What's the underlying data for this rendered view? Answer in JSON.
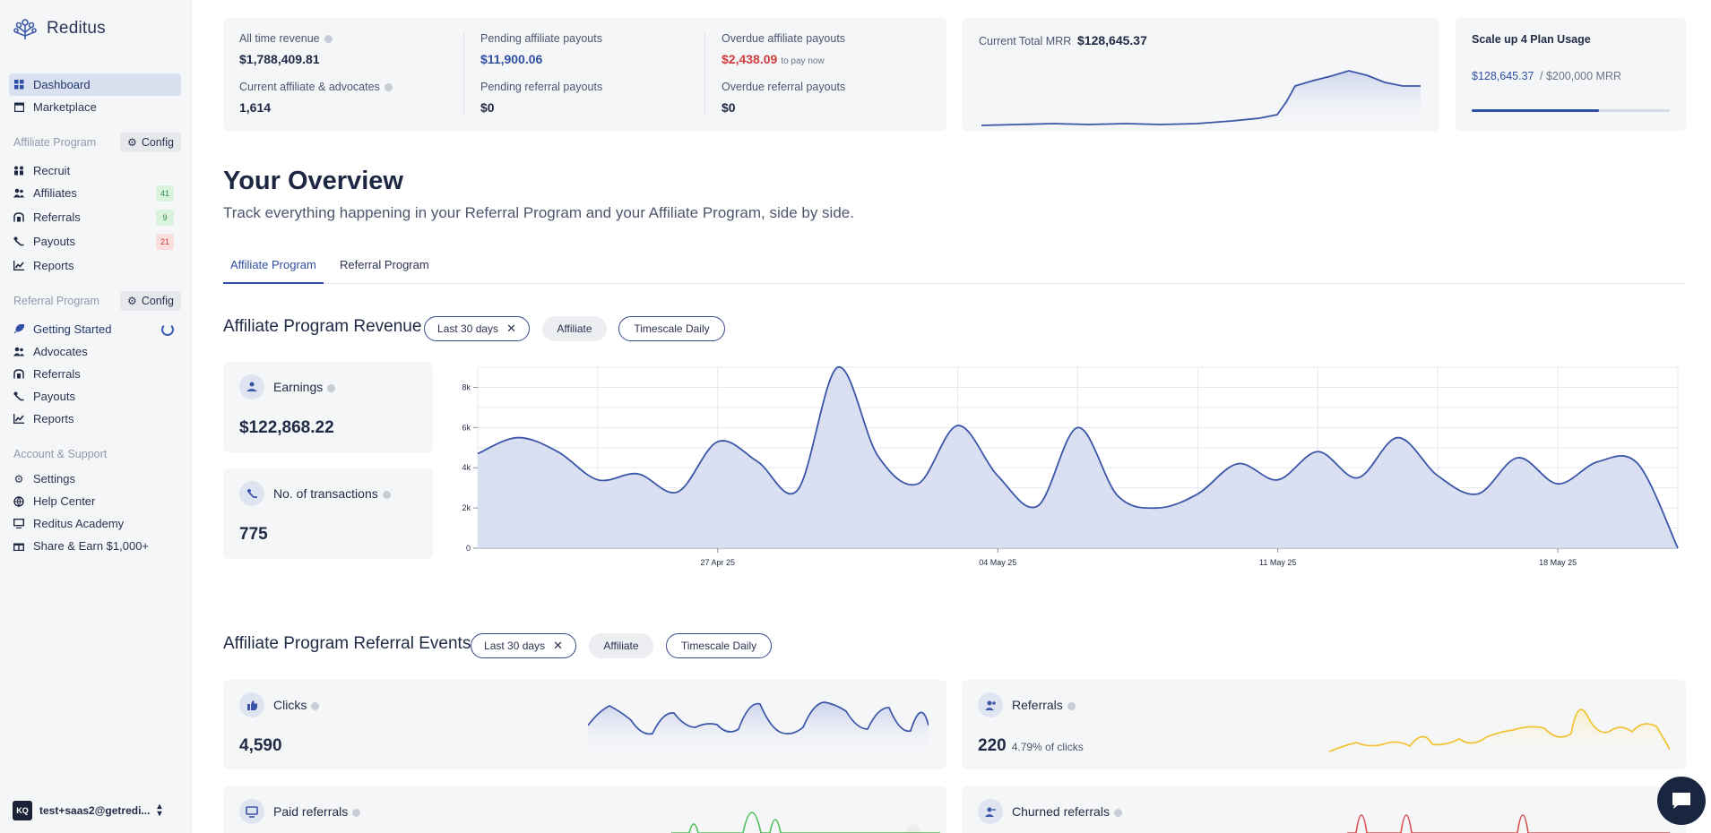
{
  "sidebar": {
    "brand": "Reditus",
    "top_items": [
      {
        "label": "Dashboard",
        "icon": "dashboard-icon"
      },
      {
        "label": "Marketplace",
        "icon": "store-icon"
      }
    ],
    "affiliate_section": {
      "title": "Affiliate Program",
      "config": "Config",
      "items": [
        {
          "label": "Recruit",
          "icon": "recruit-icon"
        },
        {
          "label": "Affiliates",
          "icon": "users-icon",
          "badge": "41"
        },
        {
          "label": "Referrals",
          "icon": "referral-icon",
          "badge": "9"
        },
        {
          "label": "Payouts",
          "icon": "payout-icon",
          "badge": "21"
        },
        {
          "label": "Reports",
          "icon": "chart-icon"
        }
      ]
    },
    "referral_section": {
      "title": "Referral Program",
      "config": "Config",
      "items": [
        {
          "label": "Getting Started",
          "icon": "rocket-icon"
        },
        {
          "label": "Advocates",
          "icon": "users-icon"
        },
        {
          "label": "Referrals",
          "icon": "referral-icon"
        },
        {
          "label": "Payouts",
          "icon": "payout-icon"
        },
        {
          "label": "Reports",
          "icon": "chart-icon"
        }
      ]
    },
    "support_section": {
      "title": "Account & Support",
      "items": [
        {
          "label": "Settings",
          "icon": "gear-icon"
        },
        {
          "label": "Help Center",
          "icon": "globe-icon"
        },
        {
          "label": "Reditus Academy",
          "icon": "academy-icon"
        },
        {
          "label": "Share & Earn $1,000+",
          "icon": "gift-icon"
        }
      ]
    },
    "account": {
      "initials": "KQ",
      "email": "test+saas2@getredi..."
    }
  },
  "stats": {
    "all_time_revenue_label": "All time revenue",
    "all_time_revenue": "$1,788,409.81",
    "affiliates_label": "Current affiliate & advocates",
    "affiliates": "1,614",
    "pending_affiliate_label": "Pending affiliate payouts",
    "pending_affiliate": "$11,900.06",
    "pending_referral_label": "Pending referral payouts",
    "pending_referral": "$0",
    "overdue_affiliate_label": "Overdue affiliate payouts",
    "overdue_affiliate": "$2,438.09",
    "overdue_affiliate_note": "to pay now",
    "overdue_referral_label": "Overdue referral payouts",
    "overdue_referral": "$0"
  },
  "mrr": {
    "label": "Current Total MRR",
    "value": "$128,645.37"
  },
  "plan": {
    "title": "Scale up 4 Plan Usage",
    "current": "$128,645.37",
    "limit": "/ $200,000 MRR",
    "progress": 0.643
  },
  "overview": {
    "title": "Your Overview",
    "subtitle": "Track everything happening in your Referral Program and your Affiliate Program, side by side.",
    "tabs": [
      "Affiliate Program",
      "Referral Program"
    ]
  },
  "revenue_section": {
    "title": "Affiliate Program Revenue",
    "filters": {
      "range": "Last 30 days",
      "type": "Affiliate",
      "timescale": "Timescale Daily"
    },
    "earnings_label": "Earnings",
    "earnings_value": "$122,868.22",
    "transactions_label": "No. of transactions",
    "transactions_value": "775"
  },
  "events_section": {
    "title": "Affiliate Program Referral Events",
    "filters": {
      "range": "Last 30 days",
      "type": "Affiliate",
      "timescale": "Timescale Daily"
    },
    "clicks_label": "Clicks",
    "clicks_value": "4,590",
    "referrals_label": "Referrals",
    "referrals_value": "220",
    "referrals_sub": "4.79% of clicks",
    "paid_label": "Paid referrals",
    "churned_label": "Churned referrals"
  },
  "chart_data": {
    "type": "area",
    "title": "",
    "xlabel": "",
    "ylabel": "",
    "ylim": [
      0,
      9000
    ],
    "yticks": [
      0,
      2000,
      4000,
      6000,
      8000
    ],
    "ytick_labels": [
      "0",
      "2k",
      "4k",
      "6k",
      "8k"
    ],
    "xtick_labels": [
      {
        "label": "27 Apr 25",
        "index": 6
      },
      {
        "label": "04 May 25",
        "index": 13
      },
      {
        "label": "11 May 25",
        "index": 20
      },
      {
        "label": "18 May 25",
        "index": 27
      }
    ],
    "x": [
      "Apr 21",
      "Apr 22",
      "Apr 23",
      "Apr 24",
      "Apr 25",
      "Apr 26",
      "Apr 27",
      "Apr 28",
      "Apr 29",
      "Apr 30",
      "May 1",
      "May 2",
      "May 3",
      "May 4",
      "May 5",
      "May 6",
      "May 7",
      "May 8",
      "May 9",
      "May 10",
      "May 11",
      "May 12",
      "May 13",
      "May 14",
      "May 15",
      "May 16",
      "May 17",
      "May 18",
      "May 19",
      "May 20",
      "May 21"
    ],
    "series": [
      {
        "values": [
          4700,
          5500,
          4800,
          3400,
          3700,
          2800,
          5300,
          4300,
          2900,
          9000,
          4600,
          3200,
          6100,
          3600,
          2100,
          6000,
          2600,
          2000,
          2700,
          4200,
          3400,
          4800,
          3500,
          5500,
          3600,
          2700,
          4500,
          3200,
          4300,
          4200,
          0
        ]
      }
    ],
    "color": "#3b55a8"
  }
}
